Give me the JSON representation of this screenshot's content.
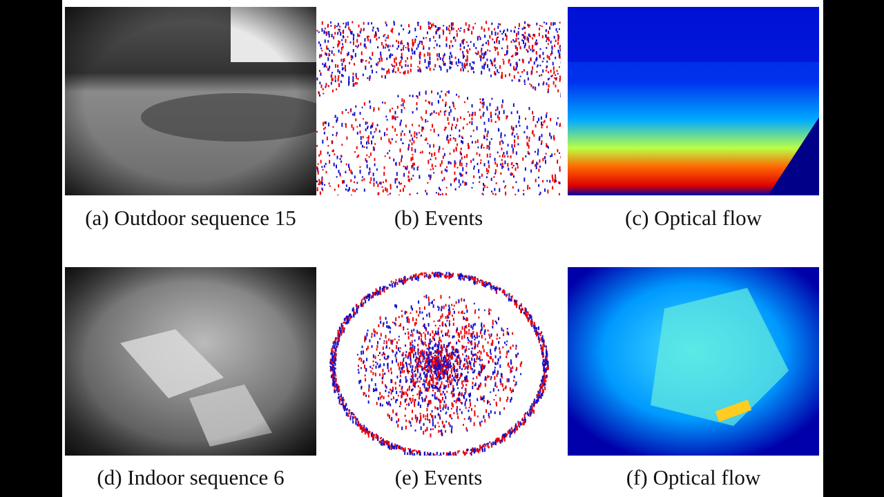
{
  "figure": {
    "panels": [
      {
        "caption": "(a) Outdoor sequence 15"
      },
      {
        "caption": "(b) Events"
      },
      {
        "caption": "(c) Optical flow"
      },
      {
        "caption": "(d) Indoor sequence 6"
      },
      {
        "caption": "(e) Events"
      },
      {
        "caption": "(f) Optical flow"
      }
    ]
  }
}
